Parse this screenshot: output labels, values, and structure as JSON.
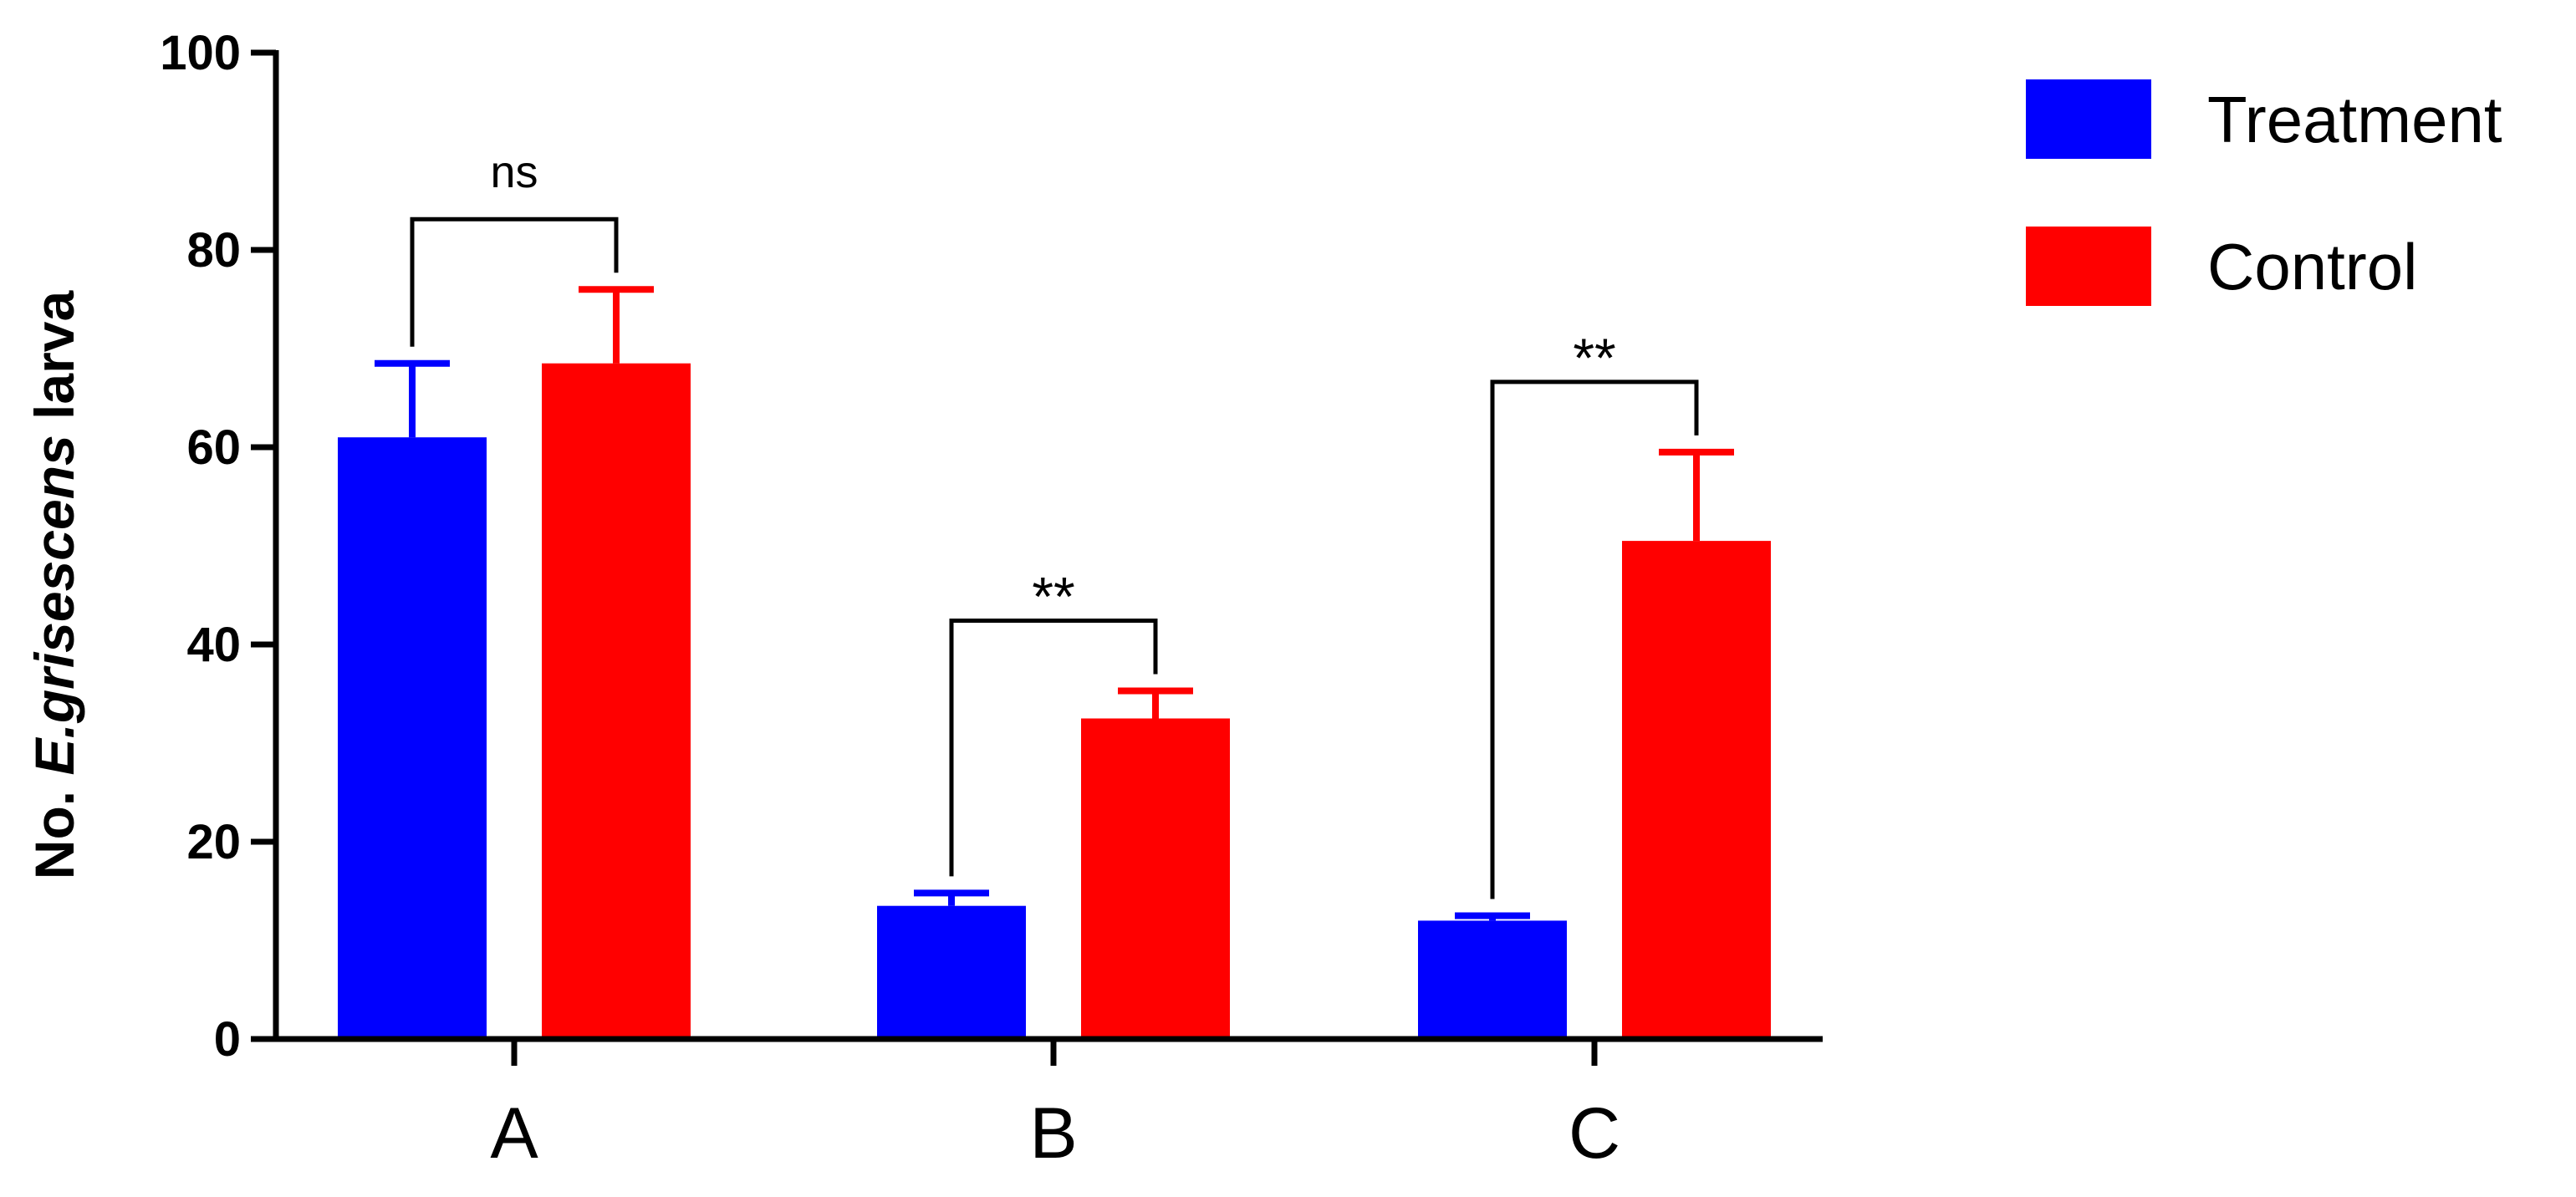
{
  "chart_data": {
    "type": "bar",
    "categories": [
      "A",
      "B",
      "C"
    ],
    "series": [
      {
        "name": "Treatment",
        "color": "#0000ff",
        "values": [
          61,
          13.5,
          12
        ],
        "errors": [
          7.5,
          1.3,
          0.5
        ]
      },
      {
        "name": "Control",
        "color": "#ff0000",
        "values": [
          68.5,
          32.5,
          50.5
        ],
        "errors": [
          7.5,
          2.8,
          9
        ]
      }
    ],
    "significance": [
      "ns",
      "**",
      "**"
    ],
    "ylim": [
      0,
      100
    ],
    "yticks": [
      0,
      20,
      40,
      60,
      80,
      100
    ],
    "ylabel": {
      "prefix": "No. ",
      "italic": "E.grisescens",
      "suffix": " larva"
    },
    "xlabel": "",
    "title": "",
    "legend_position": "top-right",
    "grid": false
  }
}
